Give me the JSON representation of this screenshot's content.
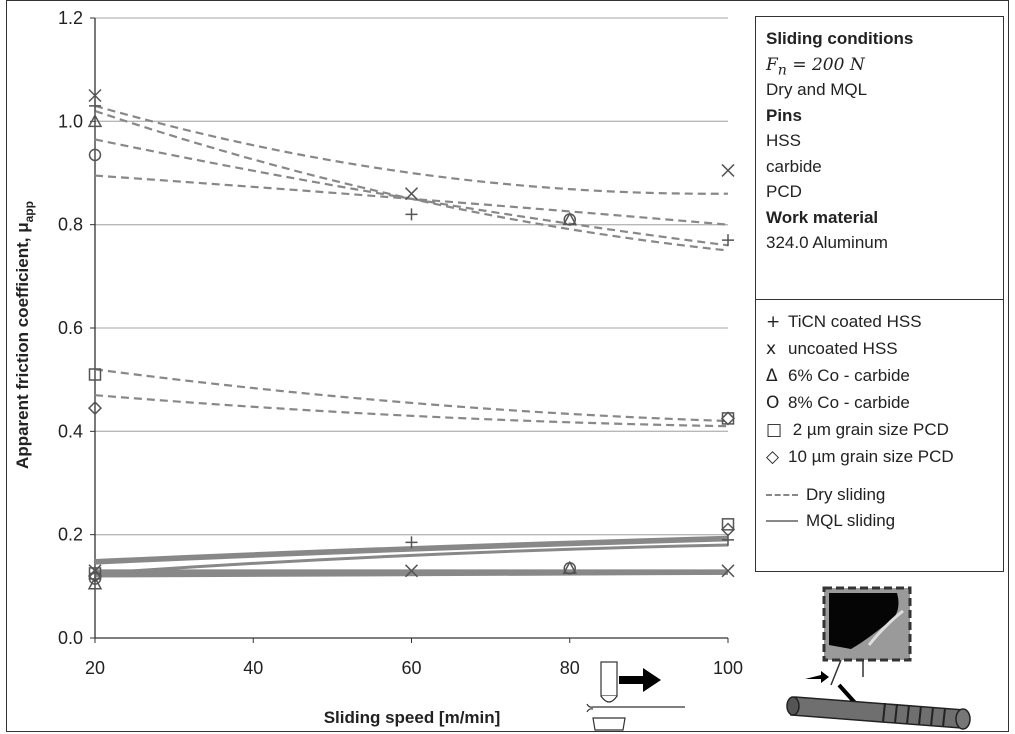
{
  "chart_data": {
    "type": "line",
    "title": "",
    "xlabel": "Sliding speed [m/min]",
    "ylabel": "Apparent friction coefficient, μ",
    "ylabel_subscript": "app",
    "xlim": [
      20,
      100
    ],
    "ylim": [
      0.0,
      1.2
    ],
    "xticks": [
      "20",
      "40",
      "60",
      "80",
      "100"
    ],
    "yticks": [
      "0.0",
      "0.2",
      "0.4",
      "0.6",
      "0.8",
      "1.0",
      "1.2"
    ],
    "grid": "horizontal",
    "legend_position": "right",
    "markers": [
      {
        "symbol": "+",
        "label": "TiCN coated HSS"
      },
      {
        "symbol": "x",
        "label": "uncoated HSS"
      },
      {
        "symbol": "Δ",
        "label": "6% Co - carbide"
      },
      {
        "symbol": "O",
        "label": "8% Co - carbide"
      },
      {
        "symbol": "□",
        "label": " 2 µm grain size PCD"
      },
      {
        "symbol": "◇",
        "label": "10 µm grain size PCD"
      }
    ],
    "line_styles": [
      {
        "style": "dashed",
        "label": "Dry sliding"
      },
      {
        "style": "solid",
        "label": "MQL sliding"
      }
    ],
    "conditions": {
      "heading1": "Sliding conditions",
      "force_symbol": "F",
      "force_sub": "n",
      "force_value": " = 200 N",
      "line2": "Dry and MQL",
      "heading2": "Pins",
      "pin1": "HSS",
      "pin2": "carbide",
      "pin3": "PCD",
      "heading3": "Work material",
      "material": "324.0 Aluminum"
    },
    "series": [
      {
        "condition": "dry",
        "material": "uncoated HSS",
        "marker": "x",
        "points": [
          [
            20,
            1.05
          ],
          [
            60,
            0.86
          ],
          [
            100,
            0.905
          ]
        ],
        "fit": [
          [
            20,
            1.03
          ],
          [
            60,
            0.9
          ],
          [
            100,
            0.86
          ]
        ]
      },
      {
        "condition": "dry",
        "material": "TiCN coated HSS",
        "marker": "+",
        "points": [
          [
            20,
            1.03
          ],
          [
            60,
            0.82
          ],
          [
            100,
            0.77
          ]
        ],
        "fit": [
          [
            20,
            1.02
          ],
          [
            60,
            0.85
          ],
          [
            100,
            0.75
          ]
        ]
      },
      {
        "condition": "dry",
        "material": "6% Co - carbide",
        "marker": "Δ",
        "points": [
          [
            20,
            1.0
          ],
          [
            80,
            0.81
          ]
        ],
        "fit": [
          [
            20,
            0.965
          ],
          [
            60,
            0.85
          ],
          [
            100,
            0.76
          ]
        ]
      },
      {
        "condition": "dry",
        "material": "8% Co - carbide",
        "marker": "O",
        "points": [
          [
            20,
            0.935
          ],
          [
            80,
            0.81
          ]
        ],
        "fit": [
          [
            20,
            0.895
          ],
          [
            60,
            0.85
          ],
          [
            100,
            0.8
          ]
        ]
      },
      {
        "condition": "dry",
        "material": "2 µm grain size PCD",
        "marker": "□",
        "points": [
          [
            20,
            0.51
          ],
          [
            100,
            0.425
          ]
        ],
        "fit": [
          [
            20,
            0.52
          ],
          [
            60,
            0.455
          ],
          [
            100,
            0.42
          ]
        ]
      },
      {
        "condition": "dry",
        "material": "10 µm grain size PCD",
        "marker": "◇",
        "points": [
          [
            20,
            0.445
          ],
          [
            100,
            0.425
          ]
        ],
        "fit": [
          [
            20,
            0.47
          ],
          [
            60,
            0.43
          ],
          [
            100,
            0.41
          ]
        ]
      },
      {
        "condition": "MQL",
        "material": "TiCN coated HSS",
        "marker": "+",
        "points": [
          [
            20,
            0.125
          ],
          [
            60,
            0.185
          ],
          [
            100,
            0.19
          ]
        ],
        "fit": [
          [
            20,
            0.15
          ],
          [
            60,
            0.175
          ],
          [
            100,
            0.195
          ]
        ]
      },
      {
        "condition": "MQL",
        "material": "2 µm grain size PCD",
        "marker": "□",
        "points": [
          [
            20,
            0.125
          ],
          [
            100,
            0.22
          ]
        ],
        "fit": [
          [
            20,
            0.145
          ],
          [
            60,
            0.17
          ],
          [
            100,
            0.19
          ]
        ]
      },
      {
        "condition": "MQL",
        "material": "10 µm grain size PCD",
        "marker": "◇",
        "points": [
          [
            20,
            0.12
          ],
          [
            100,
            0.21
          ]
        ],
        "fit": [
          [
            20,
            0.125
          ],
          [
            60,
            0.16
          ],
          [
            100,
            0.18
          ]
        ]
      },
      {
        "condition": "MQL",
        "material": "uncoated HSS",
        "marker": "x",
        "points": [
          [
            20,
            0.13
          ],
          [
            60,
            0.13
          ],
          [
            100,
            0.13
          ]
        ],
        "fit": [
          [
            20,
            0.13
          ],
          [
            60,
            0.13
          ],
          [
            100,
            0.13
          ]
        ]
      },
      {
        "condition": "MQL",
        "material": "6% Co - carbide",
        "marker": "Δ",
        "points": [
          [
            20,
            0.105
          ],
          [
            80,
            0.135
          ]
        ],
        "fit": [
          [
            20,
            0.125
          ],
          [
            60,
            0.125
          ],
          [
            100,
            0.125
          ]
        ]
      },
      {
        "condition": "MQL",
        "material": "8% Co - carbide",
        "marker": "O",
        "points": [
          [
            20,
            0.115
          ],
          [
            80,
            0.135
          ]
        ],
        "fit": [
          [
            20,
            0.12
          ],
          [
            60,
            0.122
          ],
          [
            100,
            0.125
          ]
        ]
      }
    ]
  },
  "colors": {
    "series_line": "#888888",
    "marker": "#555555",
    "grid": "#b8b8b8",
    "axis": "#333333"
  }
}
